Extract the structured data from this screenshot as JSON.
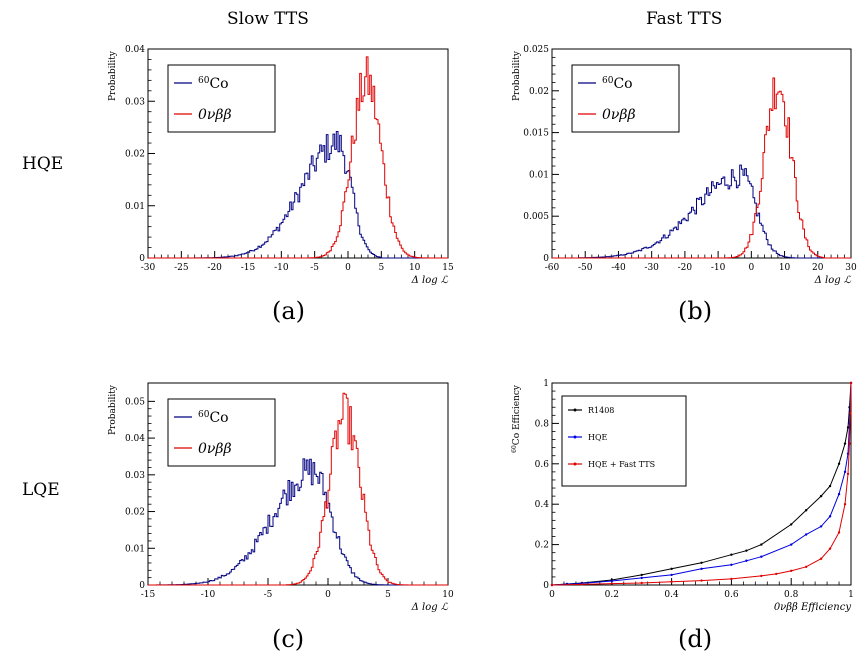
{
  "column_headers": [
    "Slow TTS",
    "Fast TTS"
  ],
  "row_labels": [
    "HQE",
    "LQE"
  ],
  "panel_labels": [
    "(a)",
    "(b)",
    "(c)",
    "(d)"
  ],
  "colors": {
    "co60": "#000080",
    "bb0n": "#e00000",
    "r1408": "#000000",
    "hqe": "#0000e0",
    "hqe_fast": "#e00000"
  },
  "chart_data": [
    {
      "type": "area",
      "panel": "(a)",
      "xlabel": "Δ log ℒ",
      "ylabel": "Probability",
      "xlim": [
        -30,
        15
      ],
      "ylim": [
        0,
        0.04
      ],
      "xticks": [
        -30,
        -25,
        -20,
        -15,
        -10,
        -5,
        0,
        5,
        10,
        15
      ],
      "yticks": [
        0,
        0.01,
        0.02,
        0.03,
        0.04
      ],
      "ytick_labels": [
        "0",
        "0.01",
        "0.02",
        "0.03",
        "0.04"
      ],
      "legend_position": "top-left",
      "series": [
        {
          "name": "60Co",
          "name_sup": "60",
          "name_main": "Co",
          "color": "#000080",
          "shape": "skewed",
          "peak_x": -1.5,
          "peak_y": 0.022,
          "range": [
            -29,
            5
          ],
          "left_width": 5.5,
          "right_width": 2.0
        },
        {
          "name": "0νββ",
          "color": "#e00000",
          "shape": "gauss",
          "peak_x": 2.8,
          "peak_y": 0.034,
          "range": [
            -8,
            13
          ],
          "left_width": 2.2,
          "right_width": 2.2
        }
      ]
    },
    {
      "type": "area",
      "panel": "(b)",
      "xlabel": "Δ log ℒ",
      "ylabel": "Probability",
      "xlim": [
        -60,
        30
      ],
      "ylim": [
        0,
        0.025
      ],
      "xticks": [
        -60,
        -50,
        -40,
        -30,
        -20,
        -10,
        0,
        10,
        20,
        30
      ],
      "yticks": [
        0,
        0.005,
        0.01,
        0.015,
        0.02,
        0.025
      ],
      "ytick_labels": [
        "0",
        "0.005",
        "0.01",
        "0.015",
        "0.02",
        "0.025"
      ],
      "legend_position": "top-left",
      "series": [
        {
          "name": "60Co",
          "name_sup": "60",
          "name_main": "Co",
          "color": "#000080",
          "shape": "skewed",
          "peak_x": -3,
          "peak_y": 0.0098,
          "range": [
            -52,
            13
          ],
          "left_width": 14,
          "right_width": 4.5
        },
        {
          "name": "0νββ",
          "color": "#e00000",
          "shape": "gauss",
          "peak_x": 8,
          "peak_y": 0.021,
          "range": [
            -12,
            22
          ],
          "left_width": 4.0,
          "right_width": 4.0
        }
      ]
    },
    {
      "type": "area",
      "panel": "(c)",
      "xlabel": "Δ log ℒ",
      "ylabel": "Probability",
      "xlim": [
        -15,
        10
      ],
      "ylim": [
        0,
        0.055
      ],
      "xticks": [
        -15,
        -10,
        -5,
        0,
        5,
        10
      ],
      "yticks": [
        0,
        0.01,
        0.02,
        0.03,
        0.04,
        0.05
      ],
      "ytick_labels": [
        "0",
        "0.01",
        "0.02",
        "0.03",
        "0.04",
        "0.05"
      ],
      "legend_position": "top-left",
      "series": [
        {
          "name": "60Co",
          "name_sup": "60",
          "name_main": "Co",
          "color": "#000080",
          "shape": "skewed",
          "peak_x": -1.3,
          "peak_y": 0.031,
          "range": [
            -14.5,
            5
          ],
          "left_width": 3.3,
          "right_width": 1.6
        },
        {
          "name": "0νββ",
          "color": "#e00000",
          "shape": "gauss",
          "peak_x": 1.4,
          "peak_y": 0.046,
          "range": [
            -3.5,
            7
          ],
          "left_width": 1.3,
          "right_width": 1.3
        }
      ]
    },
    {
      "type": "line",
      "panel": "(d)",
      "xlabel": "0νββ Efficiency",
      "ylabel": "60Co Efficiency",
      "ylabel_sup": "60",
      "ylabel_main": "Co Efficiency",
      "xlim": [
        0,
        1
      ],
      "ylim": [
        0,
        1
      ],
      "xticks": [
        0,
        0.2,
        0.4,
        0.6,
        0.8,
        1
      ],
      "xtick_labels": [
        "0",
        "0.2",
        "0.4",
        "0.6",
        "0.8",
        "1"
      ],
      "yticks": [
        0,
        0.2,
        0.4,
        0.6,
        0.8,
        1
      ],
      "ytick_labels": [
        "0",
        "0.2",
        "0.4",
        "0.6",
        "0.8",
        "1"
      ],
      "legend_position": "top-left",
      "series": [
        {
          "name": "R1408",
          "color": "#000000",
          "x": [
            0,
            0.05,
            0.1,
            0.2,
            0.3,
            0.4,
            0.5,
            0.6,
            0.65,
            0.7,
            0.8,
            0.85,
            0.9,
            0.93,
            0.96,
            0.98,
            0.99,
            0.995,
            1.0
          ],
          "y": [
            0,
            0.005,
            0.01,
            0.025,
            0.05,
            0.08,
            0.11,
            0.15,
            0.17,
            0.2,
            0.3,
            0.37,
            0.44,
            0.49,
            0.6,
            0.7,
            0.78,
            0.88,
            1.0
          ]
        },
        {
          "name": "HQE",
          "color": "#0000e0",
          "x": [
            0,
            0.05,
            0.1,
            0.2,
            0.3,
            0.4,
            0.5,
            0.6,
            0.65,
            0.7,
            0.8,
            0.85,
            0.9,
            0.93,
            0.96,
            0.98,
            0.99,
            0.995,
            1.0
          ],
          "y": [
            0,
            0.004,
            0.008,
            0.02,
            0.035,
            0.05,
            0.08,
            0.1,
            0.12,
            0.14,
            0.2,
            0.25,
            0.29,
            0.34,
            0.45,
            0.56,
            0.65,
            0.8,
            1.0
          ]
        },
        {
          "name": "HQE + Fast TTS",
          "color": "#e00000",
          "x": [
            0,
            0.1,
            0.2,
            0.3,
            0.4,
            0.5,
            0.6,
            0.7,
            0.75,
            0.8,
            0.85,
            0.9,
            0.93,
            0.96,
            0.98,
            0.99,
            0.995,
            0.998,
            1.0
          ],
          "y": [
            0,
            0.003,
            0.007,
            0.01,
            0.016,
            0.022,
            0.03,
            0.045,
            0.055,
            0.07,
            0.09,
            0.13,
            0.18,
            0.26,
            0.4,
            0.55,
            0.7,
            0.85,
            1.0
          ]
        }
      ]
    }
  ]
}
